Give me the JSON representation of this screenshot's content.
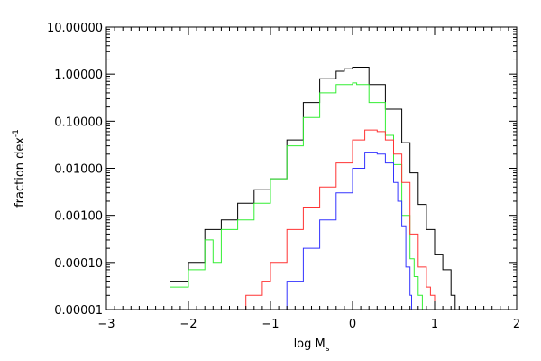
{
  "chart_data": {
    "type": "line",
    "title": "",
    "xlabel": "log M",
    "xlabel_sub": "s",
    "ylabel": "fraction dex",
    "ylabel_sup": "-1",
    "xlim": [
      -3,
      2
    ],
    "ylim": [
      1e-05,
      10
    ],
    "yscale": "log",
    "step": true,
    "grid": false,
    "legend": "none",
    "xticks": [
      {
        "value": -3,
        "label": "−3"
      },
      {
        "value": -2,
        "label": "−2"
      },
      {
        "value": -1,
        "label": "−1"
      },
      {
        "value": 0,
        "label": "0"
      },
      {
        "value": 1,
        "label": "1"
      },
      {
        "value": 2,
        "label": "2"
      }
    ],
    "yticks": [
      {
        "value": 1e-05,
        "label": "0.00001"
      },
      {
        "value": 0.0001,
        "label": "0.00010"
      },
      {
        "value": 0.001,
        "label": "0.00100"
      },
      {
        "value": 0.01,
        "label": "0.01000"
      },
      {
        "value": 0.1,
        "label": "0.10000"
      },
      {
        "value": 1,
        "label": "1.00000"
      },
      {
        "value": 10,
        "label": "10.00000"
      }
    ],
    "series": [
      {
        "color": "#000000",
        "x": [
          -2.22,
          -2.0,
          -1.8,
          -1.6,
          -1.4,
          -1.2,
          -1.0,
          -0.8,
          -0.6,
          -0.4,
          -0.2,
          -0.1,
          0.0,
          0.05,
          0.2,
          0.4,
          0.6,
          0.7,
          0.8,
          0.9,
          1.0,
          1.1,
          1.2,
          1.25
        ],
        "y": [
          4e-05,
          0.0001,
          0.0005,
          0.0008,
          0.0018,
          0.0035,
          0.006,
          0.04,
          0.25,
          0.8,
          1.15,
          1.3,
          1.4,
          1.4,
          0.6,
          0.18,
          0.035,
          0.008,
          0.0017,
          0.0005,
          0.00015,
          7e-05,
          2e-05,
          1e-05
        ]
      },
      {
        "color": "#33ee33",
        "x": [
          -2.22,
          -2.0,
          -1.8,
          -1.7,
          -1.6,
          -1.4,
          -1.2,
          -1.0,
          -0.8,
          -0.6,
          -0.4,
          -0.2,
          0.0,
          0.05,
          0.2,
          0.4,
          0.5,
          0.6,
          0.7,
          0.75,
          0.8,
          0.85
        ],
        "y": [
          3e-05,
          7e-05,
          0.0003,
          0.0001,
          0.0005,
          0.0008,
          0.0018,
          0.006,
          0.03,
          0.12,
          0.4,
          0.6,
          0.65,
          0.6,
          0.25,
          0.05,
          0.012,
          0.001,
          0.00012,
          5e-05,
          2e-05,
          1e-05
        ]
      },
      {
        "color": "#ff3333",
        "x": [
          -1.5,
          -1.3,
          -1.1,
          -1.0,
          -0.8,
          -0.6,
          -0.4,
          -0.2,
          0.0,
          0.15,
          0.3,
          0.4,
          0.5,
          0.6,
          0.7,
          0.8,
          0.9,
          0.95,
          1.0
        ],
        "y": [
          1e-05,
          2e-05,
          4e-05,
          0.0001,
          0.0005,
          0.0015,
          0.004,
          0.013,
          0.04,
          0.065,
          0.06,
          0.04,
          0.02,
          0.005,
          0.0004,
          8e-05,
          3e-05,
          2e-05,
          1e-05
        ]
      },
      {
        "color": "#3333ff",
        "x": [
          -1.0,
          -0.8,
          -0.6,
          -0.4,
          -0.2,
          0.0,
          0.15,
          0.3,
          0.4,
          0.5,
          0.55,
          0.6,
          0.65,
          0.7,
          0.72,
          0.75
        ],
        "y": [
          1e-05,
          4e-05,
          0.0002,
          0.0008,
          0.003,
          0.01,
          0.022,
          0.02,
          0.013,
          0.005,
          0.002,
          0.0006,
          8e-05,
          2e-05,
          1e-05,
          1e-05
        ]
      }
    ]
  }
}
